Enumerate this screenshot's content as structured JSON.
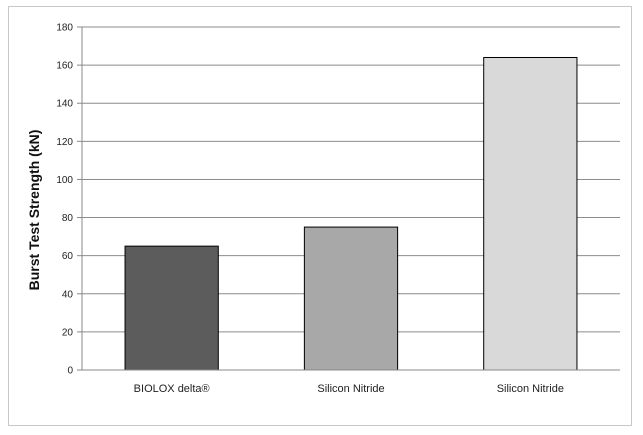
{
  "chart_data": {
    "type": "bar",
    "title": "",
    "xlabel": "",
    "ylabel": "Burst Test Strength (kN)",
    "ylim": [
      0,
      180
    ],
    "yticks": [
      0,
      20,
      40,
      60,
      80,
      100,
      120,
      140,
      160,
      180
    ],
    "grid": true,
    "categories": [
      "BIOLOX delta®",
      "Silicon Nitride",
      "Silicon Nitride"
    ],
    "values": [
      65,
      75,
      164
    ],
    "bar_colors": [
      "#5c5c5c",
      "#a8a8a8",
      "#d9d9d9"
    ]
  }
}
